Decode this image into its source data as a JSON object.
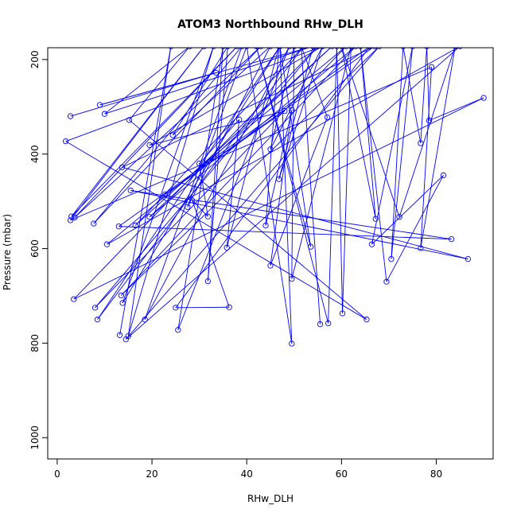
{
  "chart_data": {
    "type": "line",
    "title": "ATOM3 Northbound RHw_DLH",
    "xlabel": "RHw_DLH",
    "ylabel": "Pressure (mbar)",
    "xlim": [
      -2,
      92
    ],
    "ylim": [
      1045,
      175
    ],
    "y_reversed": true,
    "x_ticks": [
      0,
      20,
      40,
      60,
      80
    ],
    "y_ticks": [
      200,
      400,
      600,
      800,
      1000
    ],
    "x_tick_labels": [
      "0",
      "20",
      "40",
      "60",
      "80"
    ],
    "y_tick_labels": [
      "200",
      "400",
      "600",
      "800",
      "1000"
    ],
    "line_color": "#0000ff",
    "marker": "open-circle",
    "grid": false,
    "legend": "none",
    "series": [
      {
        "points": [
          [
            13.2,
            783
          ],
          [
            24,
            172
          ],
          [
            15,
            785
          ],
          [
            33,
            172
          ],
          [
            13.8,
            715
          ],
          [
            47,
            172
          ],
          [
            8.5,
            750
          ],
          [
            52,
            172
          ],
          [
            16.5,
            551
          ],
          [
            58,
            172
          ],
          [
            19.5,
            533
          ],
          [
            63,
            172
          ],
          [
            13.5,
            699
          ],
          [
            68,
            172
          ],
          [
            14.5,
            792
          ],
          [
            85,
            172
          ],
          [
            10.5,
            591
          ],
          [
            61,
            172
          ],
          [
            8,
            725
          ],
          [
            55,
            172
          ],
          [
            3.5,
            707
          ],
          [
            90,
            281
          ],
          [
            78.5,
            329
          ],
          [
            78,
            172
          ],
          [
            76.7,
            377
          ],
          [
            73,
            172
          ],
          [
            70.5,
            622
          ],
          [
            75,
            172
          ],
          [
            66.4,
            591
          ],
          [
            81.5,
            445
          ],
          [
            69.5,
            670
          ],
          [
            64,
            172
          ],
          [
            67.2,
            537
          ],
          [
            60,
            172
          ],
          [
            72.2,
            533
          ],
          [
            84,
            172
          ],
          [
            76.7,
            599
          ],
          [
            79,
            216
          ],
          [
            2.8,
            540
          ],
          [
            31,
            172
          ],
          [
            3,
            532
          ],
          [
            38,
            172
          ],
          [
            3.7,
            534
          ],
          [
            43,
            172
          ],
          [
            7.7,
            547
          ],
          [
            39,
            172
          ],
          [
            18.5,
            750
          ],
          [
            49,
            172
          ],
          [
            25.5,
            772
          ],
          [
            35,
            172
          ],
          [
            31.8,
            669
          ],
          [
            36,
            172
          ],
          [
            24.4,
            360
          ],
          [
            45,
            172
          ],
          [
            27.5,
            512
          ],
          [
            40,
            172
          ],
          [
            49.5,
            801
          ],
          [
            47,
            172
          ],
          [
            53.5,
            596
          ],
          [
            42,
            172
          ],
          [
            57.2,
            758
          ],
          [
            59,
            172
          ],
          [
            60.2,
            737
          ],
          [
            62,
            172
          ],
          [
            49.5,
            664
          ],
          [
            50,
            172
          ],
          [
            45,
            390
          ],
          [
            56,
            172
          ],
          [
            46.8,
            453
          ],
          [
            54,
            172
          ]
        ]
      },
      {
        "points": [
          [
            2.8,
            320
          ],
          [
            33.5,
            228
          ],
          [
            9,
            296
          ],
          [
            54,
            172
          ],
          [
            10,
            315
          ],
          [
            28,
            172
          ],
          [
            15.2,
            328
          ],
          [
            65.3,
            750
          ],
          [
            1.8,
            373
          ],
          [
            56,
            172
          ],
          [
            19.5,
            381
          ],
          [
            48,
            309
          ],
          [
            22.8,
            485
          ],
          [
            67,
            172
          ],
          [
            13.7,
            428
          ],
          [
            86.7,
            622
          ],
          [
            15.5,
            477
          ],
          [
            83.2,
            580
          ],
          [
            13,
            553
          ],
          [
            66,
            172
          ],
          [
            25,
            725
          ],
          [
            36.3,
            724
          ],
          [
            28.5,
            498
          ],
          [
            31.8,
            532
          ],
          [
            30,
            420
          ],
          [
            38.4,
            327
          ],
          [
            35.8,
            598
          ],
          [
            46.8,
            172
          ],
          [
            44,
            551
          ],
          [
            49.5,
            307
          ],
          [
            45,
            636
          ],
          [
            57,
            322
          ],
          [
            51.5,
            172
          ],
          [
            55.5,
            760
          ]
        ]
      }
    ]
  }
}
